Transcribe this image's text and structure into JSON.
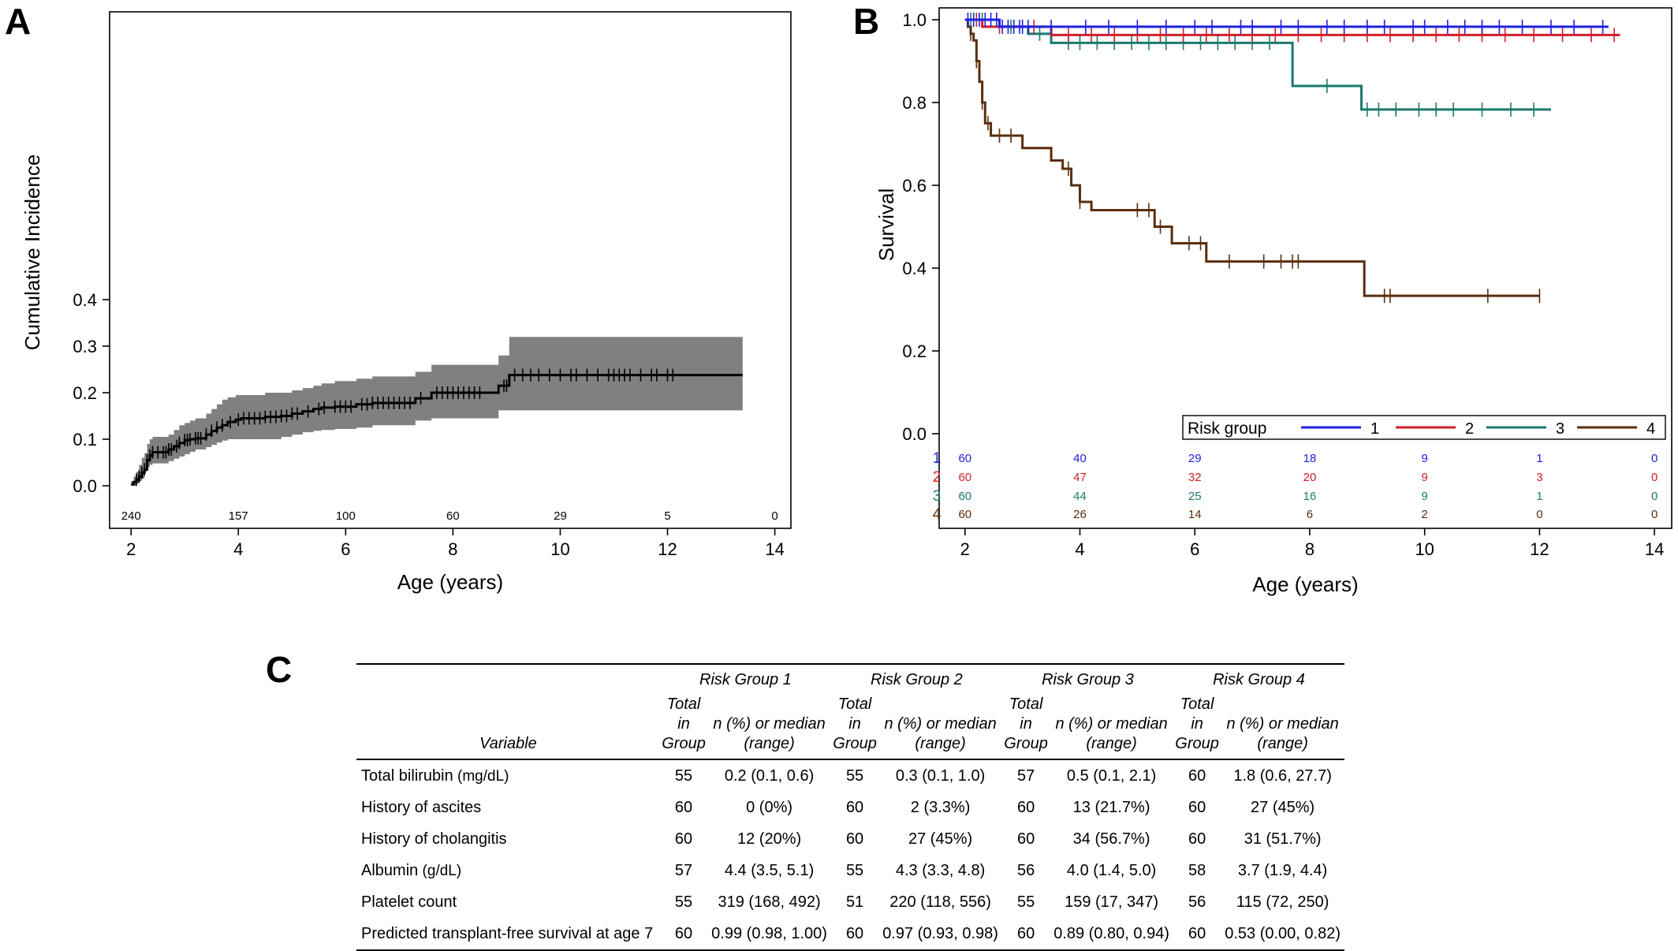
{
  "panels": {
    "a": "A",
    "b": "B",
    "c": "C"
  },
  "chart_data": [
    {
      "id": "A",
      "type": "line",
      "ylabel": "Cumulative Incidence",
      "xlabel": "Age (years)",
      "xlim": [
        2,
        14
      ],
      "xticks": [
        2,
        4,
        6,
        8,
        10,
        12,
        14
      ],
      "ylim": [
        0,
        0.4
      ],
      "yticks": [
        "0.0",
        "0.1",
        "0.2",
        "0.3",
        "0.4"
      ],
      "color": "#000000",
      "band_color": "#808080",
      "series": [
        {
          "step_x": [
            2.0,
            2.05,
            2.1,
            2.15,
            2.2,
            2.25,
            2.3,
            2.35,
            2.4,
            2.7,
            2.8,
            2.9,
            3.0,
            3.1,
            3.2,
            3.4,
            3.5,
            3.6,
            3.7,
            3.8,
            3.95,
            4.05,
            4.5,
            4.8,
            5.0,
            5.2,
            5.4,
            5.55,
            5.8,
            6.2,
            6.5,
            7.3,
            7.6,
            8.85,
            9.05,
            13.4
          ],
          "step_y": [
            0.003,
            0.008,
            0.013,
            0.02,
            0.028,
            0.035,
            0.055,
            0.065,
            0.072,
            0.078,
            0.085,
            0.092,
            0.098,
            0.1,
            0.102,
            0.11,
            0.118,
            0.125,
            0.13,
            0.137,
            0.142,
            0.145,
            0.148,
            0.15,
            0.155,
            0.16,
            0.165,
            0.168,
            0.17,
            0.175,
            0.178,
            0.188,
            0.2,
            0.215,
            0.238,
            0.238
          ],
          "ci_lower": [
            0.0,
            0.0,
            0.0,
            0.005,
            0.01,
            0.015,
            0.03,
            0.04,
            0.045,
            0.048,
            0.053,
            0.058,
            0.063,
            0.068,
            0.073,
            0.078,
            0.083,
            0.088,
            0.093,
            0.097,
            0.1,
            0.1,
            0.1,
            0.1,
            0.105,
            0.11,
            0.115,
            0.118,
            0.12,
            0.122,
            0.125,
            0.13,
            0.14,
            0.145,
            0.162,
            0.162
          ],
          "ci_upper": [
            0.01,
            0.02,
            0.03,
            0.045,
            0.06,
            0.07,
            0.09,
            0.1,
            0.105,
            0.11,
            0.12,
            0.13,
            0.135,
            0.14,
            0.145,
            0.155,
            0.165,
            0.175,
            0.185,
            0.19,
            0.195,
            0.195,
            0.2,
            0.2,
            0.205,
            0.21,
            0.215,
            0.22,
            0.225,
            0.23,
            0.235,
            0.245,
            0.26,
            0.28,
            0.32,
            0.32
          ],
          "censor_x": [
            2.1,
            2.15,
            2.2,
            2.25,
            2.3,
            2.35,
            2.4,
            2.5,
            2.6,
            2.65,
            2.7,
            2.75,
            2.85,
            2.9,
            3.0,
            3.05,
            3.1,
            3.2,
            3.25,
            3.3,
            3.4,
            3.5,
            3.6,
            3.7,
            3.85,
            4.0,
            4.1,
            4.2,
            4.3,
            4.4,
            4.5,
            4.6,
            4.7,
            4.8,
            4.9,
            5.0,
            5.1,
            5.3,
            5.5,
            5.6,
            5.8,
            5.9,
            6.0,
            6.1,
            6.3,
            6.4,
            6.5,
            6.6,
            6.7,
            6.8,
            6.9,
            7.0,
            7.1,
            7.2,
            7.4,
            7.7,
            7.8,
            7.9,
            8.0,
            8.1,
            8.2,
            8.3,
            8.4,
            8.5,
            8.95,
            9.0,
            9.15,
            9.3,
            9.45,
            9.6,
            9.8,
            10.0,
            10.2,
            10.3,
            10.5,
            10.7,
            10.9,
            11.0,
            11.1,
            11.2,
            11.3,
            11.5,
            11.7,
            11.8,
            12.0,
            12.1
          ],
          "at_risk": [
            "240",
            "157",
            "100",
            "60",
            "29",
            "5",
            "0"
          ]
        }
      ]
    },
    {
      "id": "B",
      "type": "line",
      "ylabel": "Survival",
      "xlabel": "Age (years)",
      "xlim": [
        2,
        14
      ],
      "xticks": [
        2,
        4,
        6,
        8,
        10,
        12,
        14
      ],
      "ylim": [
        0,
        1.0
      ],
      "yticks": [
        "0.0",
        "0.2",
        "0.4",
        "0.6",
        "0.8",
        "1.0"
      ],
      "legend_title": "Risk group",
      "legend_placement": "bottom-right",
      "series": [
        {
          "name": "1",
          "color": "#2020e0",
          "step_x": [
            2.0,
            2.6,
            13.2
          ],
          "step_y": [
            1.0,
            0.983,
            0.983
          ],
          "censor_x": [
            2.05,
            2.15,
            2.25,
            2.35,
            2.45,
            2.55,
            2.65,
            2.75,
            2.85,
            2.95,
            3.0,
            3.1,
            3.5,
            4.1,
            4.5,
            5.0,
            5.5,
            6.0,
            6.3,
            6.8,
            7.0,
            7.5,
            7.8,
            8.3,
            8.6,
            9.0,
            9.3,
            9.8,
            10.0,
            10.4,
            10.7,
            11.0,
            11.3,
            11.7,
            12.2,
            12.6,
            13.1
          ]
        },
        {
          "name": "2",
          "color": "#d0202a",
          "step_x": [
            2.0,
            2.3,
            3.5,
            13.4
          ],
          "step_y": [
            1.0,
            0.983,
            0.963,
            0.963
          ],
          "censor_x": [
            2.2,
            2.6,
            3.2,
            3.8,
            4.2,
            4.6,
            5.0,
            5.4,
            5.8,
            6.2,
            6.6,
            7.0,
            7.4,
            7.8,
            8.2,
            8.6,
            9.0,
            9.4,
            9.8,
            10.2,
            10.6,
            11.0,
            11.4,
            11.9,
            12.4,
            12.9,
            13.3
          ]
        },
        {
          "name": "3",
          "color": "#1a7a6e",
          "step_x": [
            2.0,
            2.6,
            3.1,
            3.5,
            7.4,
            7.7,
            8.9,
            12.2
          ],
          "step_y": [
            1.0,
            0.983,
            0.966,
            0.944,
            0.944,
            0.84,
            0.783,
            0.783
          ],
          "censor_x": [
            2.1,
            2.3,
            2.8,
            3.3,
            3.8,
            4.0,
            4.3,
            4.6,
            4.9,
            5.2,
            5.5,
            5.8,
            6.1,
            6.4,
            6.7,
            7.0,
            7.3,
            8.3,
            9.0,
            9.2,
            9.5,
            9.9,
            10.2,
            10.5,
            11.0,
            11.5,
            11.9
          ]
        },
        {
          "name": "4",
          "color": "#5a2e0e",
          "step_x": [
            2.0,
            2.05,
            2.1,
            2.15,
            2.2,
            2.25,
            2.3,
            2.35,
            2.45,
            3.0,
            3.5,
            3.7,
            3.85,
            4.0,
            4.2,
            5.3,
            5.6,
            6.2,
            8.95,
            12.0
          ],
          "step_y": [
            1.0,
            0.983,
            0.966,
            0.95,
            0.9,
            0.85,
            0.8,
            0.75,
            0.72,
            0.69,
            0.66,
            0.64,
            0.6,
            0.56,
            0.54,
            0.5,
            0.46,
            0.416,
            0.333,
            0.333
          ],
          "censor_x": [
            2.1,
            2.2,
            2.3,
            2.4,
            2.6,
            2.8,
            3.8,
            4.0,
            5.0,
            5.2,
            5.4,
            5.9,
            6.1,
            6.6,
            7.2,
            7.5,
            7.7,
            7.8,
            9.3,
            9.4,
            11.1,
            12.0
          ]
        }
      ],
      "at_risk": [
        [
          "60",
          "40",
          "29",
          "18",
          "9",
          "1",
          "0"
        ],
        [
          "60",
          "47",
          "32",
          "20",
          "9",
          "3",
          "0"
        ],
        [
          "60",
          "44",
          "25",
          "16",
          "9",
          "1",
          "0"
        ],
        [
          "60",
          "26",
          "14",
          "6",
          "2",
          "0",
          "0"
        ]
      ]
    }
  ],
  "table": {
    "groups": [
      "Risk Group 1",
      "Risk Group 2",
      "Risk Group 3",
      "Risk Group 4"
    ],
    "variable_header": "Variable",
    "total_header": [
      "Total",
      "in",
      "Group"
    ],
    "stat_header": [
      "n (%) or median",
      "(range)"
    ],
    "rows": [
      {
        "label": "Total bilirubin",
        "unit": "(mg/dL)",
        "cells": [
          "55",
          "0.2 (0.1, 0.6)",
          "55",
          "0.3 (0.1, 1.0)",
          "57",
          "0.5 (0.1, 2.1)",
          "60",
          "1.8 (0.6, 27.7)"
        ]
      },
      {
        "label": "History of ascites",
        "unit": "",
        "cells": [
          "60",
          "0 (0%)",
          "60",
          "2 (3.3%)",
          "60",
          "13 (21.7%)",
          "60",
          "27 (45%)"
        ]
      },
      {
        "label": "History of cholangitis",
        "unit": "",
        "cells": [
          "60",
          "12 (20%)",
          "60",
          "27 (45%)",
          "60",
          "34 (56.7%)",
          "60",
          "31 (51.7%)"
        ]
      },
      {
        "label": "Albumin",
        "unit": "(g/dL)",
        "cells": [
          "57",
          "4.4 (3.5, 5.1)",
          "55",
          "4.3 (3.3, 4.8)",
          "56",
          "4.0 (1.4, 5.0)",
          "58",
          "3.7 (1.9, 4.4)"
        ]
      },
      {
        "label": "Platelet count",
        "unit": "",
        "cells": [
          "55",
          "319 (168, 492)",
          "51",
          "220 (118, 556)",
          "55",
          "159 (17, 347)",
          "56",
          "115 (72, 250)"
        ]
      },
      {
        "label": "Predicted transplant-free survival at age 7",
        "unit": "",
        "cells": [
          "60",
          "0.99 (0.98, 1.00)",
          "60",
          "0.97 (0.93, 0.98)",
          "60",
          "0.89 (0.80, 0.94)",
          "60",
          "0.53 (0.00, 0.82)"
        ]
      }
    ]
  }
}
